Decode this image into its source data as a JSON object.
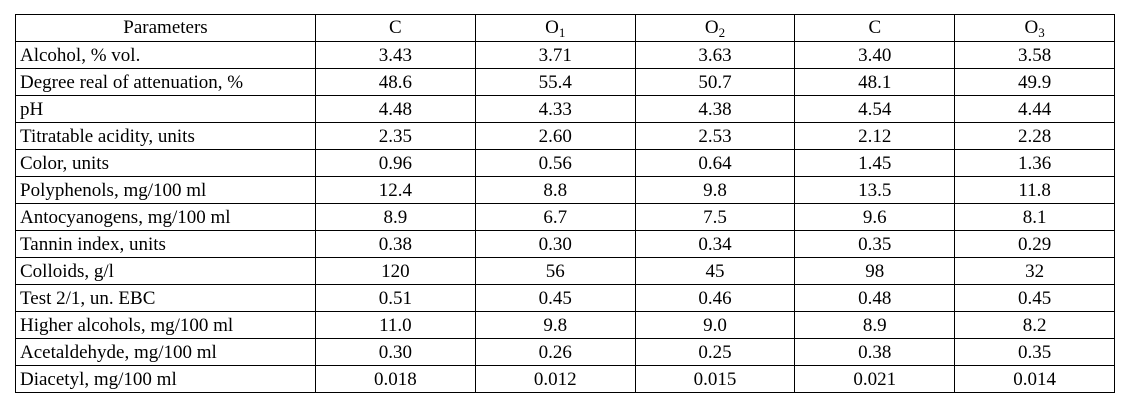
{
  "table": {
    "headers": [
      {
        "text": "Parameters",
        "sub": ""
      },
      {
        "text": "C",
        "sub": ""
      },
      {
        "text": "O",
        "sub": "1"
      },
      {
        "text": "O",
        "sub": "2"
      },
      {
        "text": "C",
        "sub": ""
      },
      {
        "text": "O",
        "sub": "3"
      }
    ],
    "rows": [
      {
        "param": "Alcohol, % vol.",
        "values": [
          "3.43",
          "3.71",
          "3.63",
          "3.40",
          "3.58"
        ]
      },
      {
        "param": "Degree real of attenuation, %",
        "values": [
          "48.6",
          "55.4",
          "50.7",
          "48.1",
          "49.9"
        ]
      },
      {
        "param": "pH",
        "values": [
          "4.48",
          "4.33",
          "4.38",
          "4.54",
          "4.44"
        ]
      },
      {
        "param": "Titratable acidity, units",
        "values": [
          "2.35",
          "2.60",
          "2.53",
          "2.12",
          "2.28"
        ]
      },
      {
        "param": "Color, units",
        "values": [
          "0.96",
          "0.56",
          "0.64",
          "1.45",
          "1.36"
        ]
      },
      {
        "param": "Polyphenols, mg/100 ml",
        "values": [
          "12.4",
          "8.8",
          "9.8",
          "13.5",
          "11.8"
        ]
      },
      {
        "param": "Antocyanogens, mg/100 ml",
        "values": [
          "8.9",
          "6.7",
          "7.5",
          "9.6",
          "8.1"
        ]
      },
      {
        "param": "Tannin index, units",
        "values": [
          "0.38",
          "0.30",
          "0.34",
          "0.35",
          "0.29"
        ]
      },
      {
        "param": "Colloids, g/l",
        "values": [
          "120",
          "56",
          "45",
          "98",
          "32"
        ]
      },
      {
        "param": "Test 2/1, un. EBC",
        "values": [
          "0.51",
          "0.45",
          "0.46",
          "0.48",
          "0.45"
        ]
      },
      {
        "param": "Higher alcohols, mg/100 ml",
        "values": [
          "11.0",
          "9.8",
          "9.0",
          "8.9",
          "8.2"
        ]
      },
      {
        "param": "Acetaldehyde, mg/100 ml",
        "values": [
          "0.30",
          "0.26",
          "0.25",
          "0.38",
          "0.35"
        ]
      },
      {
        "param": "Diacetyl, mg/100 ml",
        "values": [
          "0.018",
          "0.012",
          "0.015",
          "0.021",
          "0.014"
        ]
      }
    ]
  }
}
